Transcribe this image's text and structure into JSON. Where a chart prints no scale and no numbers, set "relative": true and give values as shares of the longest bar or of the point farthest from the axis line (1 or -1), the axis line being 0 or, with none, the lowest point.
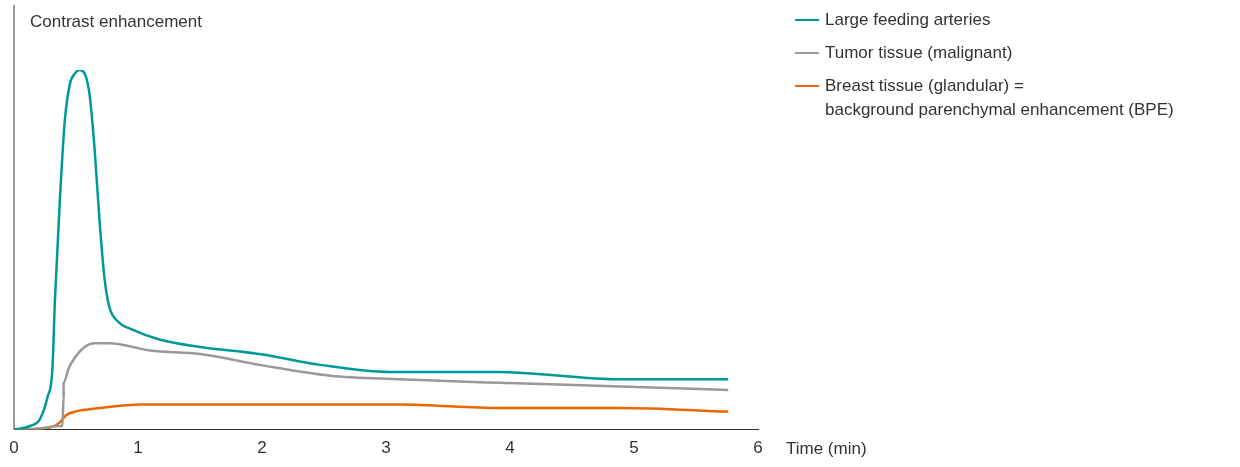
{
  "chart_data": {
    "type": "line",
    "relative": true,
    "ylabel": "Contrast enhancement",
    "xlabel": "Time (min)",
    "xlim": [
      0,
      6
    ],
    "xticks": [
      0,
      1,
      2,
      3,
      4,
      5,
      6
    ],
    "legend": "top right",
    "marker": "none",
    "series": [
      {
        "name": "Large feeding arteries",
        "color": "#009999",
        "x": [
          0,
          0.13,
          0.21,
          0.27,
          0.31,
          0.33,
          0.37,
          0.41,
          0.45,
          0.49,
          0.53,
          0.57,
          0.61,
          0.65,
          0.69,
          0.73,
          0.77,
          0.84,
          0.94,
          1.18,
          1.5,
          1.98,
          2.47,
          3.03,
          3.92,
          4.89,
          5.76
        ],
        "values": [
          0,
          0.01,
          0.03,
          0.09,
          0.17,
          0.36,
          0.64,
          0.86,
          0.96,
          0.99,
          1,
          0.99,
          0.93,
          0.78,
          0.58,
          0.42,
          0.34,
          0.3,
          0.28,
          0.25,
          0.23,
          0.21,
          0.18,
          0.16,
          0.16,
          0.14,
          0.14
        ]
      },
      {
        "name": "Tumor tissue (malignant)",
        "color": "#999999",
        "x": [
          0,
          0.21,
          0.36,
          0.39,
          0.4,
          0.4,
          0.44,
          0.49,
          0.57,
          0.65,
          0.77,
          1.1,
          1.5,
          1.98,
          2.55,
          3.11,
          3.92,
          4.89,
          5.76
        ],
        "values": [
          0,
          0.003,
          0.01,
          0.01,
          0.09,
          0.13,
          0.17,
          0.2,
          0.23,
          0.24,
          0.24,
          0.22,
          0.21,
          0.18,
          0.15,
          0.14,
          0.13,
          0.12,
          0.11
        ]
      },
      {
        "name": "Breast tissue (glandular) =\nbackground parenchymal enhancement (BPE)",
        "color": "#ec6602",
        "x": [
          0,
          0.29,
          0.37,
          0.42,
          0.49,
          0.69,
          1.02,
          1.5,
          2.39,
          3.11,
          3.92,
          4.89,
          5.76
        ],
        "values": [
          0,
          0.006,
          0.02,
          0.04,
          0.05,
          0.06,
          0.07,
          0.07,
          0.07,
          0.07,
          0.06,
          0.06,
          0.05
        ]
      }
    ]
  }
}
